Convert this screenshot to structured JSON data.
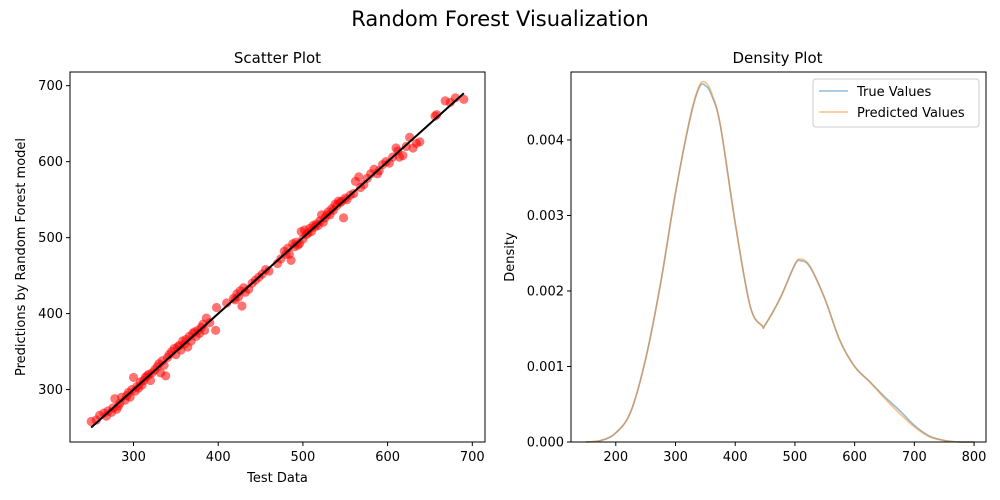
{
  "figure": {
    "suptitle": "Random Forest Visualization"
  },
  "chart_data": [
    {
      "type": "scatter",
      "title": "Scatter Plot",
      "xlabel": "Test Data",
      "ylabel": "Predictions by Random Forest model",
      "xlim": [
        225,
        715
      ],
      "ylim": [
        231,
        718
      ],
      "xticks": [
        300,
        400,
        500,
        600,
        700
      ],
      "yticks": [
        300,
        400,
        500,
        600,
        700
      ],
      "grid": false,
      "point_color": "#ff0000",
      "line_color": "#000000",
      "fit_line": {
        "x": [
          250,
          690
        ],
        "y": [
          250,
          690
        ]
      },
      "points": [
        [
          250,
          258
        ],
        [
          256,
          260
        ],
        [
          260,
          266
        ],
        [
          265,
          269
        ],
        [
          268,
          265
        ],
        [
          270,
          272
        ],
        [
          274,
          270
        ],
        [
          276,
          276
        ],
        [
          278,
          288
        ],
        [
          280,
          274
        ],
        [
          282,
          278
        ],
        [
          284,
          282
        ],
        [
          286,
          290
        ],
        [
          290,
          286
        ],
        [
          292,
          292
        ],
        [
          294,
          296
        ],
        [
          296,
          290
        ],
        [
          298,
          300
        ],
        [
          300,
          316
        ],
        [
          302,
          298
        ],
        [
          304,
          304
        ],
        [
          306,
          302
        ],
        [
          308,
          310
        ],
        [
          310,
          306
        ],
        [
          312,
          312
        ],
        [
          314,
          316
        ],
        [
          316,
          318
        ],
        [
          318,
          320
        ],
        [
          320,
          312
        ],
        [
          322,
          322
        ],
        [
          325,
          326
        ],
        [
          328,
          330
        ],
        [
          330,
          334
        ],
        [
          332,
          322
        ],
        [
          334,
          338
        ],
        [
          336,
          332
        ],
        [
          338,
          318
        ],
        [
          340,
          342
        ],
        [
          342,
          346
        ],
        [
          345,
          350
        ],
        [
          348,
          354
        ],
        [
          350,
          346
        ],
        [
          352,
          356
        ],
        [
          354,
          358
        ],
        [
          356,
          352
        ],
        [
          358,
          364
        ],
        [
          360,
          360
        ],
        [
          362,
          366
        ],
        [
          364,
          356
        ],
        [
          366,
          370
        ],
        [
          368,
          364
        ],
        [
          370,
          374
        ],
        [
          372,
          376
        ],
        [
          374,
          370
        ],
        [
          376,
          378
        ],
        [
          378,
          374
        ],
        [
          380,
          382
        ],
        [
          382,
          386
        ],
        [
          384,
          378
        ],
        [
          386,
          394
        ],
        [
          390,
          388
        ],
        [
          397,
          378
        ],
        [
          398,
          408
        ],
        [
          410,
          414
        ],
        [
          418,
          420
        ],
        [
          420,
          418
        ],
        [
          422,
          426
        ],
        [
          424,
          422
        ],
        [
          426,
          430
        ],
        [
          428,
          410
        ],
        [
          430,
          434
        ],
        [
          432,
          428
        ],
        [
          436,
          432
        ],
        [
          440,
          440
        ],
        [
          444,
          444
        ],
        [
          448,
          448
        ],
        [
          452,
          452
        ],
        [
          456,
          458
        ],
        [
          460,
          456
        ],
        [
          470,
          466
        ],
        [
          474,
          472
        ],
        [
          478,
          482
        ],
        [
          480,
          478
        ],
        [
          482,
          486
        ],
        [
          484,
          478
        ],
        [
          486,
          470
        ],
        [
          488,
          492
        ],
        [
          490,
          488
        ],
        [
          492,
          494
        ],
        [
          494,
          490
        ],
        [
          496,
          492
        ],
        [
          498,
          508
        ],
        [
          500,
          498
        ],
        [
          502,
          510
        ],
        [
          504,
          504
        ],
        [
          506,
          506
        ],
        [
          508,
          512
        ],
        [
          510,
          508
        ],
        [
          512,
          516
        ],
        [
          514,
          514
        ],
        [
          516,
          518
        ],
        [
          518,
          516
        ],
        [
          520,
          522
        ],
        [
          522,
          530
        ],
        [
          524,
          520
        ],
        [
          526,
          526
        ],
        [
          528,
          530
        ],
        [
          530,
          534
        ],
        [
          532,
          530
        ],
        [
          534,
          538
        ],
        [
          536,
          536
        ],
        [
          538,
          544
        ],
        [
          540,
          542
        ],
        [
          542,
          548
        ],
        [
          544,
          546
        ],
        [
          546,
          548
        ],
        [
          548,
          526
        ],
        [
          550,
          552
        ],
        [
          552,
          550
        ],
        [
          556,
          556
        ],
        [
          560,
          558
        ],
        [
          562,
          574
        ],
        [
          566,
          580
        ],
        [
          568,
          566
        ],
        [
          572,
          570
        ],
        [
          576,
          578
        ],
        [
          580,
          584
        ],
        [
          584,
          590
        ],
        [
          588,
          584
        ],
        [
          590,
          588
        ],
        [
          594,
          596
        ],
        [
          598,
          600
        ],
        [
          602,
          598
        ],
        [
          606,
          606
        ],
        [
          610,
          618
        ],
        [
          612,
          614
        ],
        [
          614,
          606
        ],
        [
          618,
          608
        ],
        [
          622,
          620
        ],
        [
          626,
          632
        ],
        [
          630,
          618
        ],
        [
          634,
          624
        ],
        [
          638,
          626
        ],
        [
          656,
          660
        ],
        [
          658,
          662
        ],
        [
          668,
          680
        ],
        [
          674,
          678
        ],
        [
          680,
          684
        ],
        [
          690,
          682
        ]
      ]
    },
    {
      "type": "line",
      "title": "Density Plot",
      "xlabel": "",
      "ylabel": "Density",
      "xlim": [
        125,
        820
      ],
      "ylim": [
        0,
        0.0049
      ],
      "xticks": [
        200,
        300,
        400,
        500,
        600,
        700,
        800
      ],
      "yticks": [
        0.0,
        0.001,
        0.002,
        0.003,
        0.004
      ],
      "ytick_labels": [
        "0.000",
        "0.001",
        "0.002",
        "0.003",
        "0.004"
      ],
      "grid": false,
      "legend": "top-right",
      "series": [
        {
          "name": "True Values",
          "color": "#1f77b4",
          "x": [
            150,
            175,
            200,
            225,
            250,
            275,
            300,
            325,
            340,
            350,
            360,
            375,
            400,
            425,
            445,
            450,
            475,
            500,
            510,
            525,
            550,
            575,
            600,
            625,
            650,
            675,
            700,
            725,
            750,
            775,
            800
          ],
          "y": [
            0,
            2e-05,
            0.00012,
            0.0004,
            0.0011,
            0.0021,
            0.0033,
            0.0043,
            0.0047,
            0.00472,
            0.0046,
            0.0042,
            0.0029,
            0.0018,
            0.00154,
            0.00155,
            0.0019,
            0.00235,
            0.0024,
            0.00232,
            0.0019,
            0.00135,
            0.001,
            0.0008,
            0.0006,
            0.00042,
            0.00022,
            8e-05,
            2e-05,
            0,
            0
          ]
        },
        {
          "name": "Predicted Values",
          "color": "#ff7f0e",
          "x": [
            150,
            175,
            200,
            225,
            250,
            275,
            300,
            325,
            340,
            350,
            360,
            375,
            400,
            425,
            445,
            450,
            475,
            500,
            510,
            525,
            550,
            575,
            600,
            625,
            650,
            675,
            700,
            725,
            750,
            775,
            800
          ],
          "y": [
            0,
            2e-05,
            0.00012,
            0.0004,
            0.0011,
            0.0021,
            0.0033,
            0.00432,
            0.00472,
            0.00476,
            0.00463,
            0.0042,
            0.0029,
            0.0018,
            0.00154,
            0.00155,
            0.0019,
            0.00235,
            0.00242,
            0.00233,
            0.0019,
            0.00135,
            0.001,
            0.0008,
            0.00058,
            0.00038,
            0.0002,
            7e-05,
            2e-05,
            0,
            0
          ]
        }
      ]
    }
  ]
}
